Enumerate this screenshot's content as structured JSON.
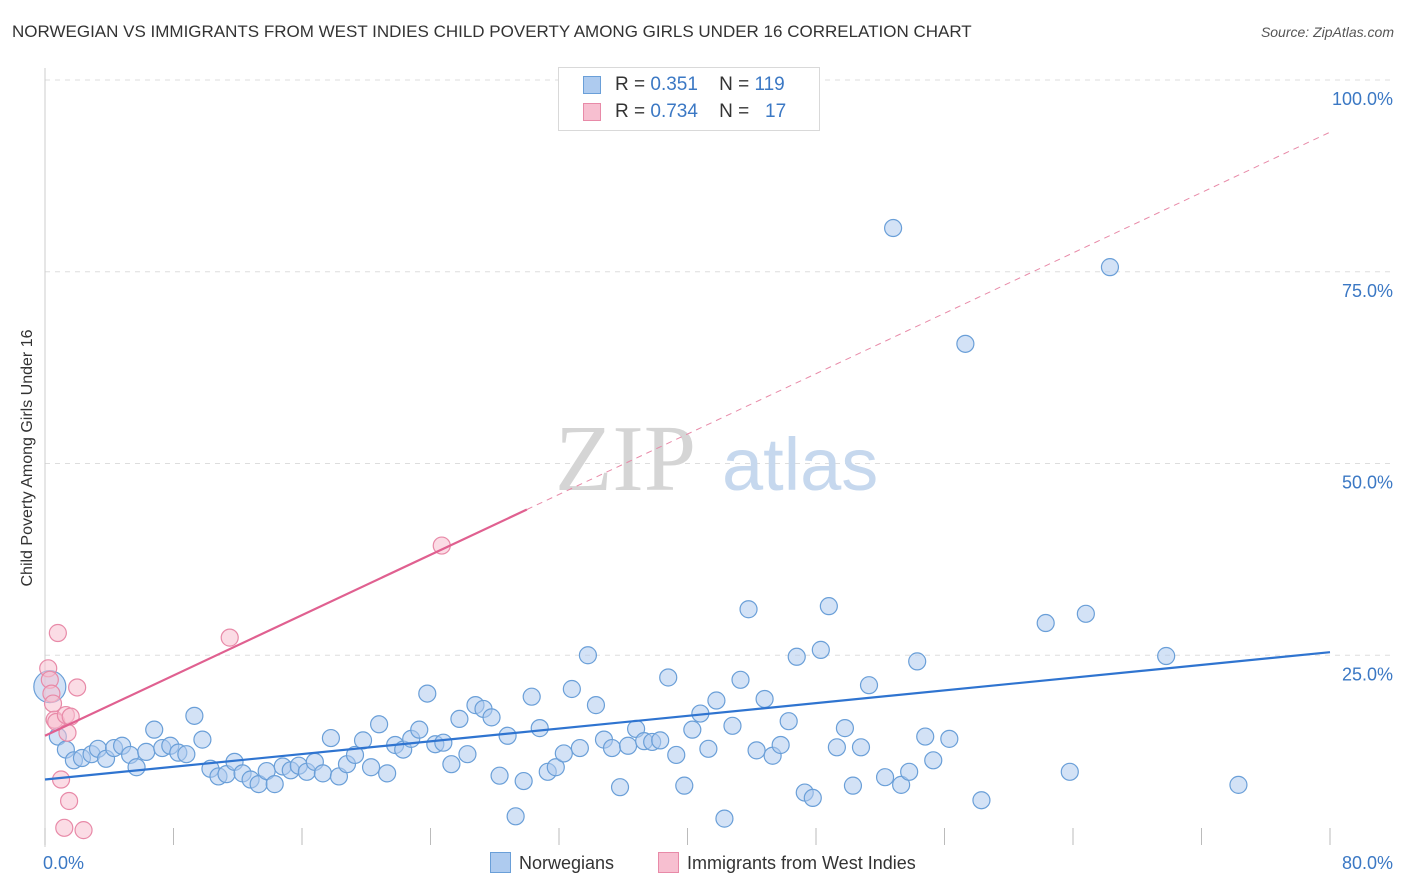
{
  "title": "NORWEGIAN VS IMMIGRANTS FROM WEST INDIES CHILD POVERTY AMONG GIRLS UNDER 16 CORRELATION CHART",
  "source": "Source: ZipAtlas.com",
  "watermark": {
    "zip": "ZIP",
    "atlas": "atlas"
  },
  "legend_top": {
    "rows": [
      {
        "r_label": "R =",
        "r_value": "0.351",
        "n_label": "N =",
        "n_value": "119"
      },
      {
        "r_label": "R =",
        "r_value": "0.734",
        "n_label": "N =",
        "n_value": "17"
      }
    ]
  },
  "legend_bottom": {
    "items": [
      "Norwegians",
      "Immigrants from West Indies"
    ]
  },
  "colors": {
    "blue_fill": "#aecbef",
    "blue_stroke": "#6a9fd8",
    "blue_line": "#2f74d0",
    "pink_fill": "#f7bfd0",
    "pink_stroke": "#e88aa8",
    "pink_line": "#e06090",
    "tick_text": "#3b78c4",
    "grid": "#dddddd"
  },
  "chart_data": {
    "type": "scatter",
    "title": "NORWEGIAN VS IMMIGRANTS FROM WEST INDIES CHILD POVERTY AMONG GIRLS UNDER 16 CORRELATION CHART",
    "xlabel": "",
    "ylabel": "Child Poverty Among Girls Under 16",
    "xlim": [
      0,
      80
    ],
    "ylim": [
      0,
      100
    ],
    "x_tick_labels": [
      "0.0%",
      "80.0%"
    ],
    "y_tick_labels": [
      "100.0%",
      "75.0%",
      "50.0%",
      "25.0%"
    ],
    "y_ticks": [
      100,
      75,
      50,
      25
    ],
    "grid": true,
    "legend": "bottom",
    "series": [
      {
        "name": "Norwegians",
        "color": "#aecbef",
        "r": "0.351",
        "n": "119",
        "trend": {
          "x": [
            0,
            80
          ],
          "y": [
            8.8,
            25.4
          ]
        },
        "points": [
          [
            0.3,
            20.9
          ],
          [
            0.8,
            14.4
          ],
          [
            1.3,
            12.7
          ],
          [
            1.8,
            11.3
          ],
          [
            2.3,
            11.6
          ],
          [
            2.9,
            12.1
          ],
          [
            3.3,
            12.8
          ],
          [
            3.8,
            11.5
          ],
          [
            4.3,
            12.9
          ],
          [
            4.8,
            13.2
          ],
          [
            5.3,
            12.0
          ],
          [
            5.7,
            10.4
          ],
          [
            6.3,
            12.4
          ],
          [
            6.8,
            15.3
          ],
          [
            7.3,
            12.9
          ],
          [
            7.8,
            13.2
          ],
          [
            8.3,
            12.3
          ],
          [
            8.8,
            12.1
          ],
          [
            9.3,
            17.1
          ],
          [
            9.8,
            14.0
          ],
          [
            10.3,
            10.2
          ],
          [
            10.8,
            9.2
          ],
          [
            11.3,
            9.5
          ],
          [
            11.8,
            11.1
          ],
          [
            12.3,
            9.6
          ],
          [
            12.8,
            8.8
          ],
          [
            13.3,
            8.2
          ],
          [
            13.8,
            9.9
          ],
          [
            14.3,
            8.2
          ],
          [
            14.8,
            10.5
          ],
          [
            15.3,
            10.0
          ],
          [
            15.8,
            10.6
          ],
          [
            16.3,
            9.8
          ],
          [
            16.8,
            11.1
          ],
          [
            17.3,
            9.6
          ],
          [
            17.8,
            14.2
          ],
          [
            18.3,
            9.2
          ],
          [
            18.8,
            10.8
          ],
          [
            19.3,
            12.0
          ],
          [
            19.8,
            13.9
          ],
          [
            20.3,
            10.4
          ],
          [
            20.8,
            16.0
          ],
          [
            21.3,
            9.6
          ],
          [
            21.8,
            13.3
          ],
          [
            22.3,
            12.7
          ],
          [
            22.8,
            14.1
          ],
          [
            23.3,
            15.3
          ],
          [
            23.8,
            20.0
          ],
          [
            24.3,
            13.4
          ],
          [
            24.8,
            13.6
          ],
          [
            25.3,
            10.8
          ],
          [
            25.8,
            16.7
          ],
          [
            26.3,
            12.1
          ],
          [
            26.8,
            18.5
          ],
          [
            27.3,
            18.0
          ],
          [
            27.8,
            16.9
          ],
          [
            28.3,
            9.3
          ],
          [
            28.8,
            14.5
          ],
          [
            29.3,
            4.0
          ],
          [
            29.8,
            8.6
          ],
          [
            30.3,
            19.6
          ],
          [
            30.8,
            15.5
          ],
          [
            31.3,
            9.8
          ],
          [
            31.8,
            10.4
          ],
          [
            32.3,
            12.2
          ],
          [
            32.8,
            20.6
          ],
          [
            33.3,
            12.9
          ],
          [
            33.8,
            25.0
          ],
          [
            34.3,
            18.5
          ],
          [
            34.8,
            14.0
          ],
          [
            35.3,
            12.9
          ],
          [
            35.8,
            7.8
          ],
          [
            36.3,
            13.2
          ],
          [
            36.8,
            15.4
          ],
          [
            37.3,
            13.8
          ],
          [
            37.8,
            13.7
          ],
          [
            38.3,
            13.9
          ],
          [
            38.8,
            22.1
          ],
          [
            39.3,
            12.0
          ],
          [
            39.8,
            8.0
          ],
          [
            40.3,
            15.3
          ],
          [
            40.8,
            17.4
          ],
          [
            41.3,
            12.8
          ],
          [
            41.8,
            19.1
          ],
          [
            42.3,
            3.7
          ],
          [
            42.8,
            15.8
          ],
          [
            43.3,
            21.8
          ],
          [
            43.8,
            31.0
          ],
          [
            44.3,
            12.6
          ],
          [
            44.8,
            19.3
          ],
          [
            45.3,
            11.9
          ],
          [
            45.8,
            13.3
          ],
          [
            46.3,
            16.4
          ],
          [
            46.8,
            24.8
          ],
          [
            47.3,
            7.1
          ],
          [
            47.8,
            6.4
          ],
          [
            48.3,
            25.7
          ],
          [
            48.8,
            31.4
          ],
          [
            49.3,
            13.0
          ],
          [
            49.8,
            15.5
          ],
          [
            50.3,
            8.0
          ],
          [
            50.8,
            13.0
          ],
          [
            51.3,
            21.1
          ],
          [
            52.3,
            9.1
          ],
          [
            52.8,
            80.7
          ],
          [
            53.3,
            8.1
          ],
          [
            53.8,
            9.8
          ],
          [
            54.3,
            24.2
          ],
          [
            54.8,
            14.4
          ],
          [
            55.3,
            11.3
          ],
          [
            56.3,
            14.1
          ],
          [
            57.3,
            65.6
          ],
          [
            58.3,
            6.1
          ],
          [
            62.3,
            29.2
          ],
          [
            63.8,
            9.8
          ],
          [
            64.8,
            30.4
          ],
          [
            66.3,
            75.6
          ],
          [
            69.8,
            24.9
          ],
          [
            74.3,
            8.1
          ]
        ]
      },
      {
        "name": "Immigrants from West Indies",
        "color": "#f7bfd0",
        "r": "0.734",
        "n": "17",
        "trend": {
          "x": [
            0,
            30
          ],
          "y": [
            14.5,
            44.0
          ]
        },
        "trend_extension": {
          "x": [
            30,
            80
          ],
          "y": [
            44.0,
            93.2
          ]
        },
        "points": [
          [
            0.2,
            23.3
          ],
          [
            0.3,
            21.8
          ],
          [
            0.4,
            20.0
          ],
          [
            0.5,
            18.7
          ],
          [
            0.6,
            16.6
          ],
          [
            0.7,
            16.3
          ],
          [
            0.8,
            27.9
          ],
          [
            1.0,
            8.8
          ],
          [
            1.2,
            2.5
          ],
          [
            1.3,
            17.2
          ],
          [
            1.4,
            14.9
          ],
          [
            1.5,
            6.0
          ],
          [
            1.6,
            17.0
          ],
          [
            2.0,
            20.8
          ],
          [
            2.4,
            2.2
          ],
          [
            11.5,
            27.3
          ],
          [
            24.7,
            39.3
          ]
        ]
      }
    ]
  }
}
